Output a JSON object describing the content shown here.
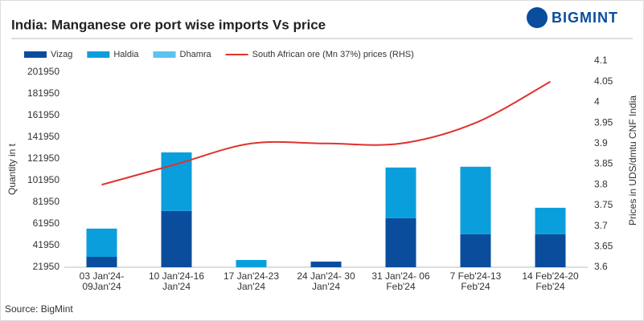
{
  "brand": "BIGMINT",
  "chart_data": {
    "type": "bar_line",
    "title": "India: Manganese ore port wise imports Vs price",
    "y_label": "Quantity in t",
    "y2_label": "Prices in UDS/dmtu CNF India",
    "source": "Source:  BigMint",
    "categories": [
      "03 Jan'24-\n09Jan'24",
      "10 Jan'24-16\nJan'24",
      "17 Jan'24-23\nJan'24",
      "24 Jan'24- 30\nJan'24",
      "31 Jan'24- 06\nFeb'24",
      "7 Feb'24-13\nFeb'24",
      "14 Feb'24-20\nFeb'24"
    ],
    "series": [
      {
        "name": "Vizag",
        "color": "#0a4d9c",
        "values": [
          9600,
          51850,
          0,
          5200,
          45200,
          30400,
          30400
        ]
      },
      {
        "name": "Haldia",
        "color": "#0a9fdc",
        "values": [
          26000,
          54000,
          6700,
          0,
          46700,
          62200,
          24400
        ]
      },
      {
        "name": "Dhamra",
        "color": "#5cc3ee",
        "values": [
          0,
          0,
          0,
          0,
          0,
          0,
          0
        ]
      },
      {
        "name": "South African ore (Mn 37%) prices (RHS)",
        "color": "#e0322e",
        "axis": "y2",
        "values": [
          3.8,
          3.85,
          3.9,
          3.9,
          3.9,
          3.95,
          4.05
        ]
      }
    ],
    "ylim": [
      21950,
      212000
    ],
    "yticks": [
      21950,
      41950,
      61950,
      81950,
      101950,
      121950,
      141950,
      161950,
      181950,
      201950
    ],
    "y2lim": [
      3.6,
      4.1
    ],
    "y2ticks": [
      3.6,
      3.65,
      3.7,
      3.75,
      3.8,
      3.85,
      3.9,
      3.95,
      4,
      4.05,
      4.1
    ],
    "legend": "top"
  }
}
